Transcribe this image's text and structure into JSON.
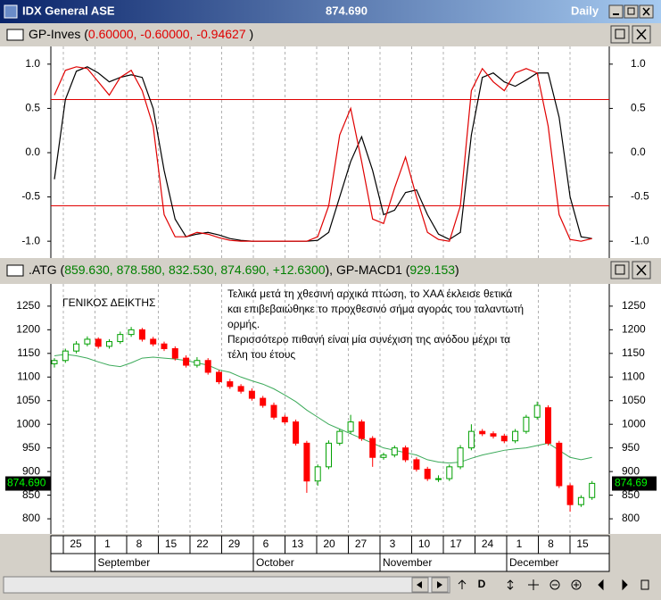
{
  "window": {
    "title": "IDX General ASE",
    "price": "874.690",
    "period": "Daily"
  },
  "oscillator": {
    "header": [
      {
        "text": "GP-Inves (",
        "color": "#000000"
      },
      {
        "text": "0.60000, -0.60000, -0.94627",
        "color": "#e00000"
      },
      {
        "text": " )",
        "color": "#000000"
      }
    ],
    "ylim": [
      -1.19,
      1.2
    ],
    "yticks": [
      {
        "value": 1,
        "label": "1.0"
      },
      0.5,
      {
        "value": 0,
        "label": "0.0"
      },
      -0.5,
      {
        "value": -1,
        "label": "-1.0"
      }
    ],
    "levels": [
      0.6,
      -0.6
    ],
    "level_color": "#e00000",
    "lines": [
      {
        "color": "#000000",
        "values": [
          -0.3,
          0.6,
          0.92,
          0.97,
          0.9,
          0.8,
          0.85,
          0.88,
          0.85,
          0.5,
          -0.2,
          -0.75,
          -0.95,
          -0.92,
          -0.9,
          -0.93,
          -0.97,
          -0.99,
          -1,
          -1,
          -1,
          -1,
          -1,
          -1,
          -0.99,
          -0.9,
          -0.5,
          -0.1,
          0.18,
          -0.2,
          -0.7,
          -0.65,
          -0.45,
          -0.42,
          -0.7,
          -0.92,
          -0.98,
          -0.9,
          0.2,
          0.85,
          0.9,
          0.8,
          0.75,
          0.82,
          0.9,
          0.9,
          0.4,
          -0.5,
          -0.95,
          -0.97
        ]
      },
      {
        "color": "#e00000",
        "values": [
          0.65,
          0.93,
          0.97,
          0.95,
          0.8,
          0.65,
          0.85,
          0.93,
          0.7,
          0.3,
          -0.7,
          -0.95,
          -0.95,
          -0.9,
          -0.92,
          -0.96,
          -0.99,
          -1,
          -1,
          -1,
          -1,
          -1,
          -1,
          -1,
          -0.95,
          -0.6,
          0.2,
          0.5,
          -0.1,
          -0.75,
          -0.8,
          -0.4,
          -0.05,
          -0.5,
          -0.9,
          -0.98,
          -1,
          -0.6,
          0.7,
          0.95,
          0.8,
          0.7,
          0.9,
          0.95,
          0.9,
          0.3,
          -0.7,
          -0.98,
          -1,
          -0.97
        ]
      }
    ]
  },
  "price": {
    "header": [
      {
        "text": ".ATG (",
        "color": "#000000"
      },
      {
        "text": "859.630, 878.580, 832.530, 874.690, +12.6300",
        "color": "#008000"
      },
      {
        "text": "), GP-MACD1 (",
        "color": "#000000"
      },
      {
        "text": "929.153",
        "color": "#008000"
      },
      {
        "text": ")",
        "color": "#000000"
      }
    ],
    "label": "ΓΕΝΙΚΟΣ ΔΕΙΚΤΗΣ",
    "note": [
      "Τελικά μετά τη χθεσινή αρχικά πτώση, το ΧΑΑ έκλεισε θετικά",
      "και επιβεβαιώθηκε το προχθεσινό σήμα αγοράς του ταλαντωτή",
      "ορμής.",
      "Περισσότερο πιθανή είναι μία συνέχιση της ανόδου  μέχρι τα",
      "τέλη  του έτους"
    ],
    "ylim": [
      768,
      1297
    ],
    "yticks": [
      800,
      850,
      900,
      950,
      1000,
      1050,
      1100,
      1150,
      1200,
      1250
    ],
    "last": {
      "value": 874.69,
      "label": "874.690",
      "label_right": "874.69"
    },
    "up_color": "#00a000",
    "down_color": "#ff0000",
    "ma_color": "#3caa5a",
    "ohlc": [
      [
        1128,
        1140,
        1120,
        1135
      ],
      [
        1135,
        1160,
        1130,
        1155
      ],
      [
        1155,
        1176,
        1150,
        1170
      ],
      [
        1170,
        1186,
        1165,
        1180
      ],
      [
        1180,
        1184,
        1160,
        1165
      ],
      [
        1165,
        1180,
        1160,
        1175
      ],
      [
        1175,
        1196,
        1170,
        1190
      ],
      [
        1190,
        1206,
        1185,
        1200
      ],
      [
        1200,
        1204,
        1175,
        1180
      ],
      [
        1180,
        1185,
        1165,
        1170
      ],
      [
        1170,
        1175,
        1155,
        1160
      ],
      [
        1160,
        1165,
        1135,
        1140
      ],
      [
        1140,
        1146,
        1120,
        1125
      ],
      [
        1125,
        1142,
        1120,
        1135
      ],
      [
        1135,
        1140,
        1105,
        1110
      ],
      [
        1110,
        1115,
        1085,
        1090
      ],
      [
        1090,
        1096,
        1075,
        1080
      ],
      [
        1080,
        1085,
        1065,
        1070
      ],
      [
        1070,
        1076,
        1050,
        1055
      ],
      [
        1055,
        1060,
        1035,
        1040
      ],
      [
        1040,
        1046,
        1010,
        1015
      ],
      [
        1015,
        1020,
        1000,
        1005
      ],
      [
        1005,
        1010,
        955,
        960
      ],
      [
        960,
        965,
        855,
        880
      ],
      [
        880,
        915,
        870,
        910
      ],
      [
        910,
        966,
        905,
        960
      ],
      [
        960,
        990,
        955,
        985
      ],
      [
        985,
        1020,
        980,
        1005
      ],
      [
        1005,
        1010,
        965,
        970
      ],
      [
        970,
        975,
        910,
        930
      ],
      [
        930,
        940,
        925,
        935
      ],
      [
        935,
        955,
        930,
        950
      ],
      [
        950,
        955,
        920,
        925
      ],
      [
        925,
        930,
        900,
        905
      ],
      [
        905,
        910,
        880,
        885
      ],
      [
        885,
        892,
        878,
        885
      ],
      [
        885,
        915,
        880,
        910
      ],
      [
        910,
        956,
        905,
        950
      ],
      [
        950,
        1000,
        945,
        985
      ],
      [
        985,
        990,
        975,
        980
      ],
      [
        980,
        985,
        970,
        975
      ],
      [
        975,
        980,
        960,
        965
      ],
      [
        965,
        990,
        960,
        985
      ],
      [
        985,
        1020,
        980,
        1015
      ],
      [
        1015,
        1048,
        1010,
        1040
      ],
      [
        1035,
        1040,
        955,
        960
      ],
      [
        960,
        965,
        865,
        870
      ],
      [
        870,
        875,
        815,
        830
      ],
      [
        830,
        850,
        825,
        845
      ],
      [
        845,
        880,
        840,
        875
      ]
    ],
    "ma": [
      1145,
      1148,
      1145,
      1140,
      1132,
      1125,
      1122,
      1130,
      1140,
      1142,
      1140,
      1138,
      1135,
      1130,
      1125,
      1115,
      1110,
      1100,
      1092,
      1085,
      1075,
      1062,
      1048,
      1030,
      1015,
      1000,
      990,
      980,
      970,
      960,
      950,
      945,
      940,
      935,
      925,
      920,
      918,
      920,
      928,
      935,
      940,
      945,
      948,
      950,
      955,
      960,
      945,
      930,
      925,
      930
    ]
  },
  "date_axis": {
    "days": [
      "25",
      "1",
      "8",
      "15",
      "22",
      "29",
      "6",
      "13",
      "20",
      "27",
      "3",
      "10",
      "17",
      "24",
      "1",
      "8",
      "15"
    ],
    "months": [
      "September",
      "October",
      "November",
      "December"
    ]
  },
  "toolbar": {
    "period_button": "D"
  }
}
